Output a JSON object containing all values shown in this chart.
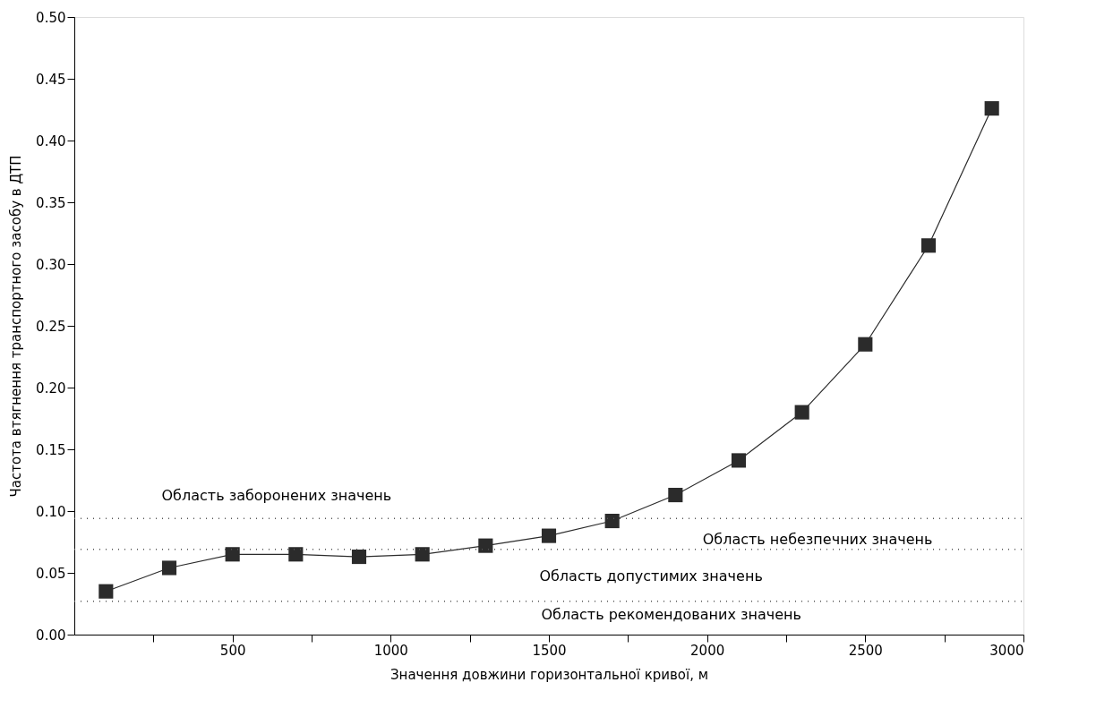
{
  "chart_data": {
    "type": "line",
    "xlabel": "Значення довжини горизонтальної кривої, м",
    "ylabel": "Частота втягнення транспортного засобу в ДТП",
    "x": [
      100,
      300,
      500,
      700,
      900,
      1100,
      1300,
      1500,
      1700,
      1900,
      2100,
      2300,
      2500,
      2700,
      2900
    ],
    "series": [
      {
        "color": "#2b2b2b",
        "values": [
          0.035,
          0.054,
          0.065,
          0.065,
          0.063,
          0.065,
          0.072,
          0.08,
          0.092,
          0.113,
          0.141,
          0.18,
          0.235,
          0.315,
          0.426
        ]
      }
    ],
    "xlim": [
      0,
      3000
    ],
    "xticks": [
      {
        "value": 250,
        "label": null
      },
      500,
      {
        "value": 750,
        "label": null
      },
      1000,
      {
        "value": 1250,
        "label": null
      },
      1500,
      {
        "value": 1750,
        "label": null
      },
      2000,
      {
        "value": 2250,
        "label": null
      },
      2500,
      {
        "value": 2750,
        "label": null
      },
      3000
    ],
    "ylim": [
      0,
      0.5
    ],
    "yticks": [
      {
        "value": 0,
        "label": "0.00"
      },
      {
        "value": 0.05,
        "label": "0.05"
      },
      {
        "value": 0.1,
        "label": "0.10"
      },
      {
        "value": 0.15,
        "label": "0.15"
      },
      {
        "value": 0.2,
        "label": "0.20"
      },
      {
        "value": 0.25,
        "label": "0.25"
      },
      {
        "value": 0.3,
        "label": "0.30"
      },
      {
        "value": 0.35,
        "label": "0.35"
      },
      {
        "value": 0.4,
        "label": "0.40"
      },
      {
        "value": 0.45,
        "label": "0.45"
      },
      {
        "value": 0.5,
        "label": "0.50"
      }
    ],
    "ref_lines": [
      {
        "axis": "y",
        "value": 0.094,
        "color": "#555555",
        "line_style": "dotted"
      },
      {
        "axis": "y",
        "value": 0.069,
        "color": "#555555",
        "line_style": "dotted"
      },
      {
        "axis": "y",
        "value": 0.027,
        "color": "#555555",
        "line_style": "dotted"
      }
    ],
    "annotations": [
      "Область заборонених значень",
      "Область небезпечних значень",
      "Область допустимих  значень",
      "Область рекомендованих  значень"
    ],
    "grid": false,
    "marker": "square",
    "line_style": "solid"
  }
}
